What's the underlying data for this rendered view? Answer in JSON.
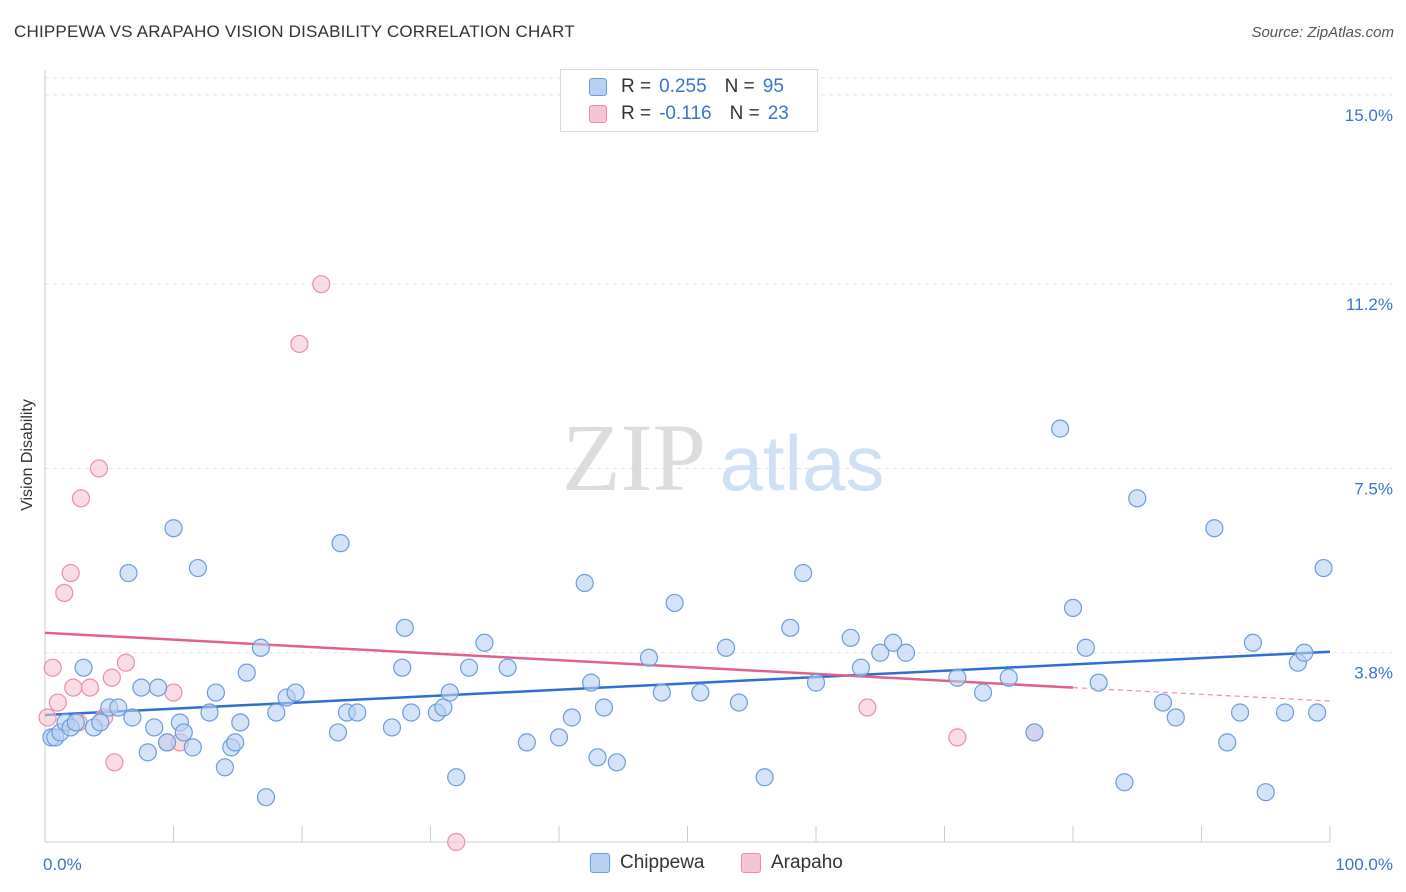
{
  "title": "CHIPPEWA VS ARAPAHO VISION DISABILITY CORRELATION CHART",
  "source": "Source: ZipAtlas.com",
  "watermark": {
    "zip": "ZIP",
    "atlas": "atlas"
  },
  "colors": {
    "chippewa_fill": "#b7d1f3",
    "chippewa_stroke": "#6a9ddc",
    "chippewa_line": "#2f6fd0",
    "arapaho_fill": "#f7c4d4",
    "arapaho_stroke": "#ea8fab",
    "arapaho_line": "#e0608e",
    "tick_label": "#3a74d0"
  },
  "legend": {
    "rows": [
      {
        "series": "Chippewa",
        "r_label": "R =",
        "r_value": "0.255",
        "n_label": "N =",
        "n_value": "95"
      },
      {
        "series": "Arapaho",
        "r_label": "R =",
        "r_value": "-0.116",
        "n_label": "N =",
        "n_value": "23"
      }
    ]
  },
  "chart_data": {
    "type": "scatter",
    "title": "CHIPPEWA VS ARAPAHO VISION DISABILITY CORRELATION CHART",
    "xlabel": "",
    "ylabel": "Vision Disability",
    "xlim": [
      0,
      100
    ],
    "ylim": [
      0,
      15.5
    ],
    "x_tick_labels": [
      "0.0%",
      "100.0%"
    ],
    "y_ticks": [
      3.8,
      7.5,
      11.2,
      15.0
    ],
    "y_tick_labels": [
      "3.8%",
      "7.5%",
      "11.2%",
      "15.0%"
    ],
    "grid": "horizontal dashed",
    "legend_position": "top-center",
    "series": [
      {
        "name": "Chippewa",
        "r": 0.255,
        "n": 95,
        "trend": {
          "x": [
            0,
            100
          ],
          "y": [
            2.55,
            3.82
          ]
        },
        "points": [
          [
            0.5,
            2.1
          ],
          [
            0.8,
            2.1
          ],
          [
            1.2,
            2.2
          ],
          [
            1.6,
            2.4
          ],
          [
            2.0,
            2.3
          ],
          [
            2.4,
            2.4
          ],
          [
            3.0,
            3.5
          ],
          [
            3.8,
            2.3
          ],
          [
            4.3,
            2.4
          ],
          [
            5.0,
            2.7
          ],
          [
            5.7,
            2.7
          ],
          [
            6.5,
            5.4
          ],
          [
            6.8,
            2.5
          ],
          [
            7.5,
            3.1
          ],
          [
            8.0,
            1.8
          ],
          [
            8.5,
            2.3
          ],
          [
            8.8,
            3.1
          ],
          [
            9.5,
            2.0
          ],
          [
            10.0,
            6.3
          ],
          [
            10.5,
            2.4
          ],
          [
            10.8,
            2.2
          ],
          [
            11.5,
            1.9
          ],
          [
            11.9,
            5.5
          ],
          [
            12.8,
            2.6
          ],
          [
            13.3,
            3.0
          ],
          [
            14.0,
            1.5
          ],
          [
            14.5,
            1.9
          ],
          [
            14.8,
            2.0
          ],
          [
            15.2,
            2.4
          ],
          [
            15.7,
            3.4
          ],
          [
            16.8,
            3.9
          ],
          [
            17.2,
            0.9
          ],
          [
            18.0,
            2.6
          ],
          [
            18.8,
            2.9
          ],
          [
            19.5,
            3.0
          ],
          [
            22.8,
            2.2
          ],
          [
            23.0,
            6.0
          ],
          [
            23.5,
            2.6
          ],
          [
            24.3,
            2.6
          ],
          [
            27.0,
            2.3
          ],
          [
            27.8,
            3.5
          ],
          [
            28.0,
            4.3
          ],
          [
            28.5,
            2.6
          ],
          [
            30.5,
            2.6
          ],
          [
            31.0,
            2.7
          ],
          [
            31.5,
            3.0
          ],
          [
            32.0,
            1.3
          ],
          [
            33.0,
            3.5
          ],
          [
            34.2,
            4.0
          ],
          [
            36.0,
            3.5
          ],
          [
            37.5,
            2.0
          ],
          [
            40.0,
            2.1
          ],
          [
            41.0,
            2.5
          ],
          [
            42.0,
            5.2
          ],
          [
            42.5,
            3.2
          ],
          [
            43.0,
            1.7
          ],
          [
            43.5,
            2.7
          ],
          [
            44.5,
            1.6
          ],
          [
            47.0,
            3.7
          ],
          [
            48.0,
            3.0
          ],
          [
            49.0,
            4.8
          ],
          [
            51.0,
            3.0
          ],
          [
            53.0,
            3.9
          ],
          [
            54.0,
            2.8
          ],
          [
            56.0,
            1.3
          ],
          [
            58.0,
            4.3
          ],
          [
            59.0,
            5.4
          ],
          [
            60.0,
            3.2
          ],
          [
            62.7,
            4.1
          ],
          [
            63.5,
            3.5
          ],
          [
            65.0,
            3.8
          ],
          [
            66.0,
            4.0
          ],
          [
            67.0,
            3.8
          ],
          [
            71.0,
            3.3
          ],
          [
            73.0,
            3.0
          ],
          [
            75.0,
            3.3
          ],
          [
            77.0,
            2.2
          ],
          [
            79.0,
            8.3
          ],
          [
            80.0,
            4.7
          ],
          [
            81.0,
            3.9
          ],
          [
            82.0,
            3.2
          ],
          [
            84.0,
            1.2
          ],
          [
            85.0,
            6.9
          ],
          [
            87.0,
            2.8
          ],
          [
            88.0,
            2.5
          ],
          [
            91.0,
            6.3
          ],
          [
            92.0,
            2.0
          ],
          [
            93.0,
            2.6
          ],
          [
            94.0,
            4.0
          ],
          [
            95.0,
            1.0
          ],
          [
            96.5,
            2.6
          ],
          [
            97.5,
            3.6
          ],
          [
            98.0,
            3.8
          ],
          [
            99.0,
            2.6
          ],
          [
            99.5,
            5.5
          ]
        ]
      },
      {
        "name": "Arapaho",
        "r": -0.116,
        "n": 23,
        "trend": {
          "x": [
            0,
            80
          ],
          "y": [
            4.2,
            3.1
          ],
          "dashed_to": {
            "x": 100,
            "y": 2.83
          }
        },
        "points": [
          [
            0.2,
            2.5
          ],
          [
            0.6,
            3.5
          ],
          [
            1.0,
            2.8
          ],
          [
            1.5,
            5.0
          ],
          [
            2.0,
            5.4
          ],
          [
            2.2,
            3.1
          ],
          [
            2.6,
            2.4
          ],
          [
            2.8,
            6.9
          ],
          [
            3.5,
            3.1
          ],
          [
            4.2,
            7.5
          ],
          [
            4.6,
            2.5
          ],
          [
            5.2,
            3.3
          ],
          [
            5.4,
            1.6
          ],
          [
            6.3,
            3.6
          ],
          [
            9.5,
            2.0
          ],
          [
            10.0,
            3.0
          ],
          [
            10.5,
            2.0
          ],
          [
            19.8,
            10.0
          ],
          [
            21.5,
            11.2
          ],
          [
            32.0,
            0.0
          ],
          [
            64.0,
            2.7
          ],
          [
            71.0,
            2.1
          ],
          [
            77.0,
            2.2
          ]
        ]
      }
    ]
  }
}
